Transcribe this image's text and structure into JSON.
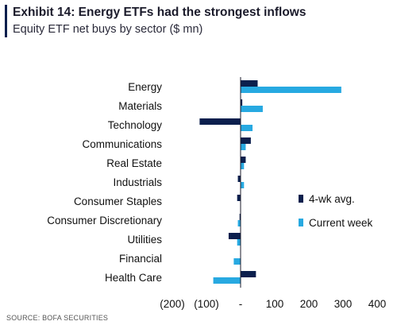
{
  "header": {
    "title": "Exhibit 14: Energy ETFs had the strongest inflows",
    "subtitle": "Equity ETF net buys by sector ($ mn)"
  },
  "source": "SOURCE: BOFA SECURITIES",
  "colors": {
    "series_4wk": "#0b1f4d",
    "series_current": "#27a9e1",
    "axis": "#1b1b2b"
  },
  "chart_data": {
    "type": "bar",
    "orientation": "horizontal",
    "categories": [
      "Energy",
      "Materials",
      "Technology",
      "Communications",
      "Real Estate",
      "Industrials",
      "Consumer Staples",
      "Consumer Discretionary",
      "Utilities",
      "Financial",
      "Health Care"
    ],
    "series": [
      {
        "name": "4-wk avg.",
        "values": [
          50,
          5,
          -120,
          30,
          15,
          -8,
          -10,
          -3,
          -35,
          0,
          45
        ]
      },
      {
        "name": "Current week",
        "values": [
          295,
          65,
          35,
          15,
          10,
          10,
          0,
          -8,
          -10,
          -20,
          -80
        ]
      }
    ],
    "xlim": [
      -200,
      400
    ],
    "xticks": [
      -200,
      -100,
      0,
      100,
      200,
      300,
      400
    ],
    "xtick_labels": [
      "(200)",
      "(100)",
      "-",
      "100",
      "200",
      "300",
      "400"
    ],
    "legend_position": "right",
    "grid": false
  }
}
